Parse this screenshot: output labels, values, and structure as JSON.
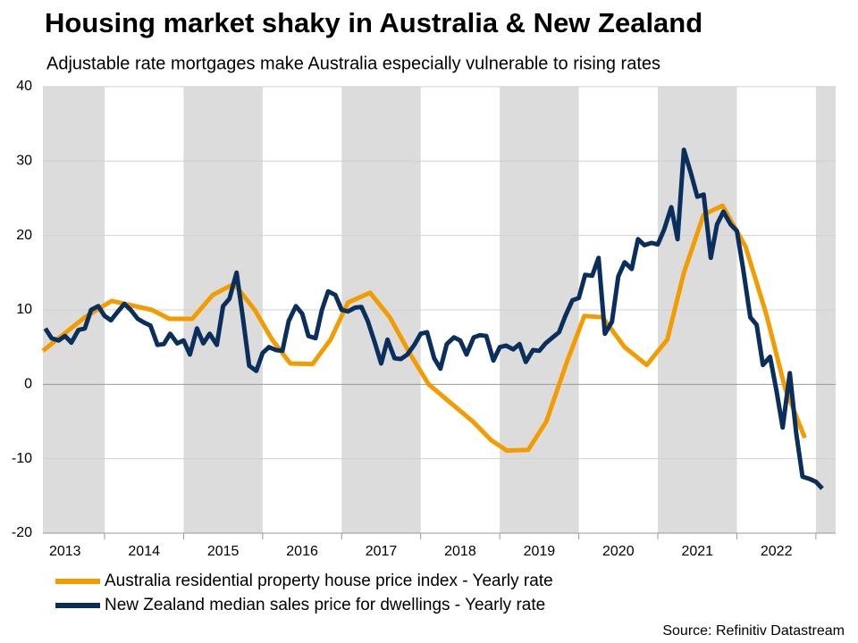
{
  "chart_data": {
    "type": "line",
    "title": "Housing market shaky in Australia & New Zealand",
    "subtitle": "Adjustable rate mortgages make Australia especially vulnerable to rising rates",
    "source": "Source: Refinitiv Datastream",
    "xlim": [
      2013.22,
      2023.25
    ],
    "ylim": [
      -20,
      40
    ],
    "yticks": [
      -20,
      -10,
      0,
      10,
      20,
      30,
      40
    ],
    "xticks": [
      {
        "value": 2013.5,
        "label": "2013"
      },
      {
        "value": 2014.5,
        "label": "2014"
      },
      {
        "value": 2015.5,
        "label": "2015"
      },
      {
        "value": 2016.5,
        "label": "2016"
      },
      {
        "value": 2017.5,
        "label": "2017"
      },
      {
        "value": 2018.5,
        "label": "2018"
      },
      {
        "value": 2019.5,
        "label": "2019"
      },
      {
        "value": 2020.5,
        "label": "2020"
      },
      {
        "value": 2021.5,
        "label": "2021"
      },
      {
        "value": 2022.5,
        "label": "2022"
      }
    ],
    "shaded_years": [
      2013,
      2015,
      2017,
      2019,
      2021,
      2023
    ],
    "grid": true,
    "series": [
      {
        "name": "Australia residential property house price index - Yearly rate",
        "color": "#f39c00",
        "x": [
          2013.22,
          2013.75,
          2014.09,
          2014.6,
          2014.82,
          2015.11,
          2015.37,
          2015.64,
          2015.9,
          2016.12,
          2016.35,
          2016.63,
          2016.86,
          2017.08,
          2017.36,
          2017.61,
          2017.87,
          2018.1,
          2018.38,
          2018.66,
          2018.89,
          2019.09,
          2019.36,
          2019.59,
          2019.85,
          2020.07,
          2020.3,
          2020.58,
          2020.86,
          2021.12,
          2021.33,
          2021.58,
          2021.82,
          2022.11,
          2022.37,
          2022.61,
          2022.86
        ],
        "values": [
          4.5,
          9,
          11.2,
          10,
          8.8,
          8.8,
          12,
          13.5,
          10,
          6,
          2.8,
          2.7,
          6,
          11,
          12.3,
          9,
          4,
          0,
          -2.5,
          -5,
          -7.5,
          -8.9,
          -8.8,
          -5,
          3,
          9.2,
          9,
          5,
          2.6,
          6,
          15,
          22.8,
          24,
          18.5,
          9.5,
          -0.5,
          -7.2
        ]
      },
      {
        "name": "New Zealand median sales price for dwellings - Yearly rate",
        "color": "#0b2f5c",
        "x": [
          2013.25,
          2013.33,
          2013.42,
          2013.5,
          2013.58,
          2013.67,
          2013.75,
          2013.83,
          2013.92,
          2014.0,
          2014.08,
          2014.17,
          2014.25,
          2014.33,
          2014.42,
          2014.5,
          2014.58,
          2014.67,
          2014.75,
          2014.83,
          2014.92,
          2015.0,
          2015.08,
          2015.17,
          2015.25,
          2015.33,
          2015.42,
          2015.5,
          2015.58,
          2015.67,
          2015.75,
          2015.83,
          2015.92,
          2016.0,
          2016.08,
          2016.17,
          2016.25,
          2016.33,
          2016.42,
          2016.5,
          2016.58,
          2016.67,
          2016.75,
          2016.83,
          2016.92,
          2017.0,
          2017.08,
          2017.17,
          2017.25,
          2017.33,
          2017.42,
          2017.5,
          2017.58,
          2017.67,
          2017.75,
          2017.83,
          2017.92,
          2018.0,
          2018.08,
          2018.17,
          2018.25,
          2018.33,
          2018.42,
          2018.5,
          2018.58,
          2018.67,
          2018.75,
          2018.83,
          2018.92,
          2019.0,
          2019.08,
          2019.17,
          2019.25,
          2019.33,
          2019.42,
          2019.5,
          2019.58,
          2019.67,
          2019.75,
          2019.83,
          2019.92,
          2020.0,
          2020.08,
          2020.17,
          2020.25,
          2020.33,
          2020.42,
          2020.5,
          2020.58,
          2020.67,
          2020.75,
          2020.83,
          2020.92,
          2021.0,
          2021.08,
          2021.17,
          2021.25,
          2021.33,
          2021.42,
          2021.5,
          2021.58,
          2021.67,
          2021.75,
          2021.83,
          2021.92,
          2022.0,
          2022.08,
          2022.17,
          2022.25,
          2022.33,
          2022.42,
          2022.5,
          2022.58,
          2022.67,
          2022.75,
          2022.83,
          2022.92,
          2023.0,
          2023.08
        ],
        "values": [
          7.5,
          6.2,
          5.9,
          6.5,
          5.6,
          7.3,
          7.5,
          10,
          10.5,
          9.2,
          8.6,
          9.8,
          10.8,
          10,
          8.8,
          8.3,
          7.9,
          5.3,
          5.4,
          6.8,
          5.5,
          5.9,
          4,
          7.5,
          5.5,
          6.8,
          5.3,
          10.5,
          11.5,
          15,
          9,
          2.5,
          1.8,
          4.2,
          5,
          4.6,
          4.5,
          8.5,
          10.5,
          9.5,
          6.5,
          6.2,
          10,
          12.5,
          12,
          10,
          9.8,
          10.3,
          10.4,
          8.5,
          5.6,
          2.8,
          6,
          3.5,
          3.4,
          4,
          5.3,
          6.8,
          7,
          3.5,
          2.1,
          5.4,
          6.3,
          5.9,
          4,
          6.3,
          6.6,
          6.5,
          3.2,
          5,
          5.2,
          4.7,
          5.4,
          3,
          4.6,
          4.5,
          5.5,
          6.3,
          7,
          9.2,
          11.3,
          11.6,
          14.7,
          14.6,
          17,
          6.8,
          8.4,
          14.5,
          16.4,
          15.5,
          19.5,
          18.7,
          19,
          18.8,
          20.8,
          23.8,
          19.5,
          31.5,
          28.3,
          25.2,
          25.5,
          17,
          21.5,
          23.2,
          21.5,
          20.6,
          15.5,
          9,
          8,
          2.6,
          3.7,
          -0.8,
          -5.8,
          1.5,
          -6.5,
          -12.4,
          -12.7,
          -13.1,
          -14
        ]
      }
    ]
  }
}
